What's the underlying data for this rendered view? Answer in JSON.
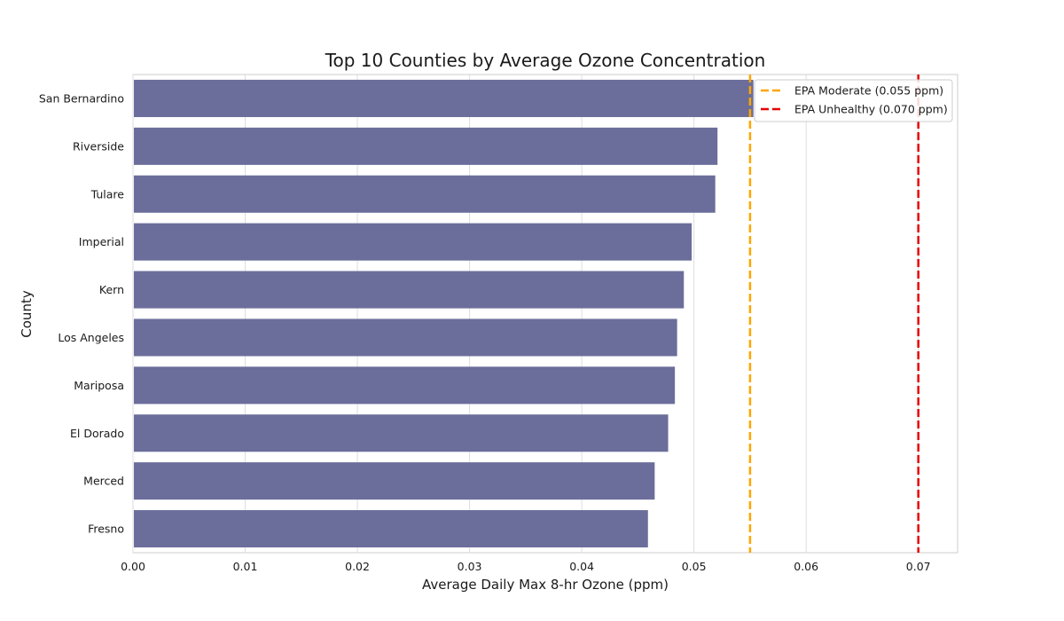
{
  "chart_data": {
    "type": "bar",
    "orientation": "horizontal",
    "title": "Top 10 Counties by Average Ozone Concentration",
    "xlabel": "Average Daily Max 8-hr Ozone (ppm)",
    "ylabel": "County",
    "categories": [
      "San Bernardino",
      "Riverside",
      "Tulare",
      "Imperial",
      "Kern",
      "Los Angeles",
      "Mariposa",
      "El Dorado",
      "Merced",
      "Fresno"
    ],
    "values": [
      0.0553,
      0.0521,
      0.0519,
      0.0498,
      0.0491,
      0.0485,
      0.0483,
      0.0477,
      0.0465,
      0.0459
    ],
    "xlim": [
      0.0,
      0.0735
    ],
    "xticks": [
      "0.00",
      "0.01",
      "0.02",
      "0.03",
      "0.04",
      "0.05",
      "0.06",
      "0.07"
    ],
    "bar_color": "#6b6e9b",
    "grid": true,
    "legend_position": "top-right",
    "reference_lines": [
      {
        "label": "EPA Moderate (0.055 ppm)",
        "x": 0.055,
        "color": "#ffa500",
        "style": "dashed"
      },
      {
        "label": "EPA Unhealthy (0.070 ppm)",
        "x": 0.07,
        "color": "#e60000",
        "style": "dashed"
      }
    ]
  }
}
